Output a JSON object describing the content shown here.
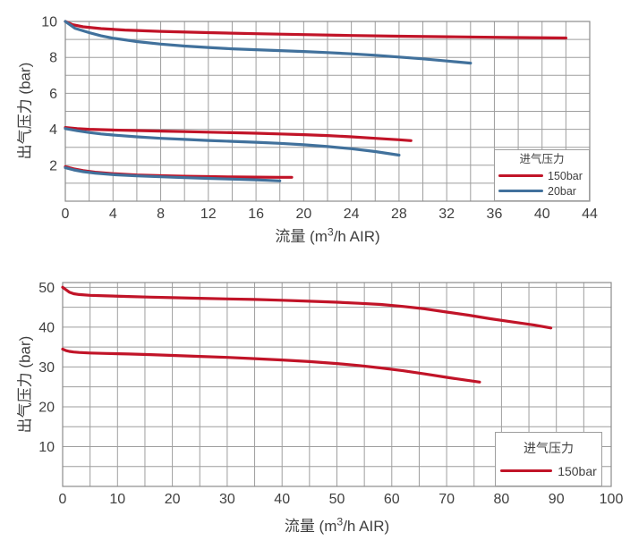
{
  "colors": {
    "red": "#C11428",
    "blue": "#41719C",
    "grid": "#9E9E9E",
    "border": "#8C8C8C",
    "text": "#3F3F3F",
    "background": "#FFFFFF"
  },
  "chart_data": [
    {
      "type": "line",
      "title": "",
      "xlabel": "流量 (m3/h AIR)",
      "xlabel_parts": {
        "pre": "流量 (m",
        "sup": "3",
        "post": "/h AIR)"
      },
      "ylabel": "出气压力 (bar)",
      "xlim": [
        0,
        44
      ],
      "ylim": [
        0,
        10
      ],
      "x_ticks": [
        0,
        4,
        8,
        12,
        16,
        20,
        24,
        28,
        32,
        36,
        40,
        44
      ],
      "y_ticks": [
        2,
        4,
        6,
        8,
        10
      ],
      "x_grid_step": 2,
      "y_grid_step": 1,
      "grid": true,
      "legend": {
        "title": "进气压力",
        "position": "bottom-right",
        "entries": [
          {
            "label": "150bar",
            "color": "#C11428"
          },
          {
            "label": "20bar",
            "color": "#41719C"
          }
        ]
      },
      "series": [
        {
          "name": "150bar-upper",
          "color": "#C11428",
          "points": [
            [
              0,
              10
            ],
            [
              0.6,
              9.82
            ],
            [
              1.5,
              9.7
            ],
            [
              3,
              9.6
            ],
            [
              5,
              9.52
            ],
            [
              8,
              9.45
            ],
            [
              12,
              9.38
            ],
            [
              16,
              9.32
            ],
            [
              20,
              9.27
            ],
            [
              24,
              9.22
            ],
            [
              28,
              9.18
            ],
            [
              32,
              9.15
            ],
            [
              36,
              9.12
            ],
            [
              39,
              9.1
            ],
            [
              42,
              9.08
            ]
          ]
        },
        {
          "name": "20bar-upper",
          "color": "#41719C",
          "points": [
            [
              0,
              10
            ],
            [
              0.8,
              9.62
            ],
            [
              2,
              9.38
            ],
            [
              3,
              9.2
            ],
            [
              4,
              9.07
            ],
            [
              6,
              8.88
            ],
            [
              8,
              8.74
            ],
            [
              10,
              8.63
            ],
            [
              12,
              8.55
            ],
            [
              14,
              8.48
            ],
            [
              16,
              8.43
            ],
            [
              18,
              8.38
            ],
            [
              20,
              8.33
            ],
            [
              22,
              8.27
            ],
            [
              24,
              8.2
            ],
            [
              26,
              8.12
            ],
            [
              28,
              8.02
            ],
            [
              30,
              7.92
            ],
            [
              32,
              7.8
            ],
            [
              34,
              7.68
            ]
          ]
        },
        {
          "name": "150bar-middle",
          "color": "#C11428",
          "points": [
            [
              0,
              4.1
            ],
            [
              1,
              4.04
            ],
            [
              2,
              4.0
            ],
            [
              4,
              3.96
            ],
            [
              6,
              3.93
            ],
            [
              8,
              3.9
            ],
            [
              10,
              3.87
            ],
            [
              12,
              3.84
            ],
            [
              14,
              3.81
            ],
            [
              16,
              3.78
            ],
            [
              18,
              3.74
            ],
            [
              20,
              3.7
            ],
            [
              22,
              3.65
            ],
            [
              24,
              3.58
            ],
            [
              26,
              3.5
            ],
            [
              28,
              3.42
            ],
            [
              29,
              3.37
            ]
          ]
        },
        {
          "name": "20bar-middle",
          "color": "#41719C",
          "points": [
            [
              0,
              4.04
            ],
            [
              1,
              3.92
            ],
            [
              2,
              3.82
            ],
            [
              3,
              3.74
            ],
            [
              4,
              3.68
            ],
            [
              6,
              3.58
            ],
            [
              8,
              3.5
            ],
            [
              10,
              3.44
            ],
            [
              12,
              3.38
            ],
            [
              14,
              3.33
            ],
            [
              16,
              3.28
            ],
            [
              18,
              3.22
            ],
            [
              20,
              3.14
            ],
            [
              22,
              3.04
            ],
            [
              24,
              2.92
            ],
            [
              26,
              2.76
            ],
            [
              28,
              2.56
            ]
          ]
        },
        {
          "name": "150bar-lower",
          "color": "#C11428",
          "points": [
            [
              0,
              1.92
            ],
            [
              0.7,
              1.8
            ],
            [
              1.5,
              1.7
            ],
            [
              2.5,
              1.61
            ],
            [
              4,
              1.53
            ],
            [
              6,
              1.46
            ],
            [
              8,
              1.42
            ],
            [
              10,
              1.39
            ],
            [
              12,
              1.37
            ],
            [
              14,
              1.35
            ],
            [
              16,
              1.34
            ],
            [
              18,
              1.33
            ],
            [
              19,
              1.33
            ]
          ]
        },
        {
          "name": "20bar-lower",
          "color": "#41719C",
          "points": [
            [
              0,
              1.86
            ],
            [
              0.7,
              1.74
            ],
            [
              1.5,
              1.64
            ],
            [
              2.5,
              1.56
            ],
            [
              4,
              1.48
            ],
            [
              6,
              1.41
            ],
            [
              8,
              1.36
            ],
            [
              10,
              1.31
            ],
            [
              12,
              1.27
            ],
            [
              14,
              1.23
            ],
            [
              16,
              1.19
            ],
            [
              17,
              1.16
            ],
            [
              18,
              1.13
            ]
          ]
        }
      ]
    },
    {
      "type": "line",
      "title": "",
      "xlabel": "流量 (m3/h AIR)",
      "xlabel_parts": {
        "pre": "流量 (m",
        "sup": "3",
        "post": "/h AIR)"
      },
      "ylabel": "出气压力 (bar)",
      "xlim": [
        0,
        100
      ],
      "ylim": [
        0,
        51.2
      ],
      "x_ticks": [
        0,
        10,
        20,
        30,
        40,
        50,
        60,
        70,
        80,
        90,
        100
      ],
      "y_ticks": [
        10,
        20,
        30,
        40,
        50
      ],
      "x_grid_step": 5,
      "y_grid_step": 5,
      "grid": true,
      "legend": {
        "title": "进气压力",
        "position": "bottom-right",
        "entries": [
          {
            "label": "150bar",
            "color": "#C11428"
          }
        ]
      },
      "series": [
        {
          "name": "150bar-upper",
          "color": "#C11428",
          "points": [
            [
              0,
              50
            ],
            [
              0.6,
              49.4
            ],
            [
              1.2,
              48.8
            ],
            [
              2,
              48.4
            ],
            [
              3,
              48.2
            ],
            [
              5,
              48.0
            ],
            [
              8,
              47.85
            ],
            [
              12,
              47.7
            ],
            [
              16,
              47.55
            ],
            [
              20,
              47.4
            ],
            [
              25,
              47.25
            ],
            [
              30,
              47.1
            ],
            [
              35,
              46.95
            ],
            [
              40,
              46.75
            ],
            [
              45,
              46.5
            ],
            [
              50,
              46.25
            ],
            [
              54,
              46.0
            ],
            [
              58,
              45.7
            ],
            [
              62,
              45.2
            ],
            [
              66,
              44.6
            ],
            [
              70,
              43.8
            ],
            [
              74,
              43.0
            ],
            [
              78,
              42.1
            ],
            [
              82,
              41.3
            ],
            [
              86,
              40.5
            ],
            [
              89,
              39.8
            ]
          ]
        },
        {
          "name": "150bar-lower",
          "color": "#C11428",
          "points": [
            [
              0,
              34.5
            ],
            [
              0.6,
              34.1
            ],
            [
              1.2,
              33.9
            ],
            [
              2,
              33.75
            ],
            [
              3,
              33.65
            ],
            [
              5,
              33.5
            ],
            [
              8,
              33.4
            ],
            [
              12,
              33.25
            ],
            [
              16,
              33.1
            ],
            [
              20,
              32.9
            ],
            [
              25,
              32.65
            ],
            [
              30,
              32.4
            ],
            [
              35,
              32.1
            ],
            [
              40,
              31.75
            ],
            [
              45,
              31.35
            ],
            [
              50,
              30.85
            ],
            [
              54,
              30.35
            ],
            [
              58,
              29.75
            ],
            [
              62,
              29.05
            ],
            [
              66,
              28.25
            ],
            [
              70,
              27.4
            ],
            [
              73,
              26.8
            ],
            [
              76,
              26.2
            ]
          ]
        }
      ]
    }
  ]
}
